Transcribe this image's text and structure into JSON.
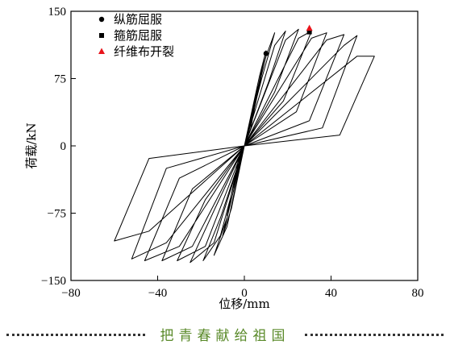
{
  "chart_data": {
    "type": "line",
    "xlabel": "位移/mm",
    "ylabel": "荷载/kN",
    "xlim": [
      -80,
      80
    ],
    "ylim": [
      -150,
      150
    ],
    "xticks": [
      -80,
      -40,
      0,
      40,
      80
    ],
    "yticks": [
      -150,
      -75,
      0,
      75,
      150
    ],
    "xtick_labels": [
      "−80",
      "−40",
      "0",
      "40",
      "80"
    ],
    "ytick_labels": [
      "−150",
      "−75",
      "0",
      "75",
      "150"
    ],
    "legend_position": "top-left",
    "series": [
      {
        "type": "line",
        "color": "#000000",
        "x": [
          0,
          3,
          5,
          3,
          0,
          -3,
          -5,
          -3,
          0,
          5,
          8,
          5,
          0,
          -5,
          -8,
          -5,
          0,
          7,
          10,
          6,
          0,
          -6,
          -10,
          -6,
          0,
          10,
          14,
          8,
          0,
          -8,
          -14,
          -8,
          0,
          14,
          19,
          11,
          0,
          -11,
          -19,
          -11,
          0,
          19,
          25,
          14,
          0,
          -14,
          -25,
          -14,
          0,
          25,
          31,
          18,
          0,
          -18,
          -31,
          -18,
          0,
          31,
          38,
          24,
          0,
          -24,
          -38,
          -24,
          0,
          38,
          46,
          30,
          0,
          -30,
          -46,
          -30,
          0,
          46,
          52,
          36,
          0,
          -36,
          -52,
          -36,
          0,
          52,
          60,
          44,
          0,
          -44,
          -60,
          -44,
          0
        ],
        "y": [
          0,
          30,
          46,
          20,
          0,
          -28,
          -46,
          -18,
          0,
          55,
          80,
          45,
          0,
          -50,
          -78,
          -42,
          0,
          78,
          106,
          62,
          0,
          -70,
          -100,
          -60,
          0,
          100,
          126,
          75,
          0,
          -90,
          -122,
          -80,
          0,
          112,
          128,
          70,
          0,
          -100,
          -128,
          -80,
          0,
          118,
          130,
          60,
          0,
          -108,
          -130,
          -72,
          0,
          120,
          128,
          50,
          0,
          -112,
          -128,
          -60,
          0,
          120,
          126,
          38,
          0,
          -112,
          -128,
          -48,
          0,
          118,
          124,
          28,
          0,
          -112,
          -128,
          -36,
          0,
          112,
          123,
          20,
          0,
          -108,
          -126,
          -25,
          0,
          100,
          100,
          12,
          0,
          -95,
          -106,
          -14,
          0
        ]
      },
      {
        "name": "纵筋屈服",
        "type": "scatter",
        "marker": "circle",
        "color": "#000000",
        "points": [
          {
            "x": 10,
            "y": 103
          }
        ]
      },
      {
        "name": "箍筋屈服",
        "type": "scatter",
        "marker": "square",
        "color": "#000000",
        "points": [
          {
            "x": 30,
            "y": 127
          }
        ]
      },
      {
        "name": "纤维布开裂",
        "type": "scatter",
        "marker": "triangle",
        "color": "#e8141b",
        "points": [
          {
            "x": 30,
            "y": 131
          }
        ]
      }
    ]
  },
  "footer": {
    "text": "把青春献给祖国",
    "color": "#5a8a2a"
  }
}
